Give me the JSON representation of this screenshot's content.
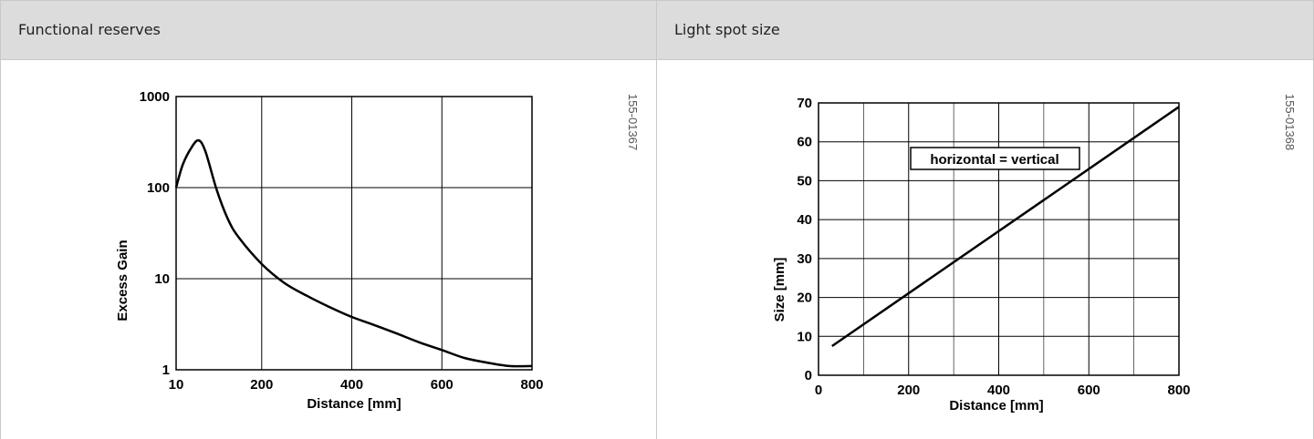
{
  "panels": [
    {
      "header": "Functional reserves",
      "figure_code": "155-01367"
    },
    {
      "header": "Light spot size",
      "figure_code": "155-01368"
    }
  ],
  "chart_data": [
    {
      "type": "line",
      "title": "",
      "xlabel": "Distance [mm]",
      "ylabel": "Excess Gain",
      "yscale": "log",
      "xlim": [
        10,
        800
      ],
      "ylim": [
        1,
        1000
      ],
      "xticks": [
        "10",
        "200",
        "400",
        "600",
        "800"
      ],
      "yticks": [
        "1",
        "10",
        "100",
        "1000"
      ],
      "grid": true,
      "x": [
        10,
        25,
        45,
        60,
        75,
        100,
        125,
        150,
        200,
        250,
        300,
        350,
        400,
        450,
        500,
        550,
        600,
        650,
        700,
        750,
        800
      ],
      "y": [
        100,
        180,
        280,
        330,
        250,
        95,
        45,
        28,
        14.5,
        9,
        6.5,
        4.9,
        3.8,
        3.1,
        2.5,
        2.0,
        1.65,
        1.35,
        1.2,
        1.1,
        1.1
      ]
    },
    {
      "type": "line",
      "title": "",
      "xlabel": "Distance [mm]",
      "ylabel": "Size [mm]",
      "xlim": [
        0,
        800
      ],
      "ylim": [
        0,
        70
      ],
      "xticks": [
        "0",
        "200",
        "400",
        "600",
        "800"
      ],
      "yticks": [
        "0",
        "10",
        "20",
        "30",
        "40",
        "50",
        "60",
        "70"
      ],
      "grid": true,
      "annotation": "horizontal = vertical",
      "x": [
        30,
        800
      ],
      "y": [
        7.5,
        69
      ]
    }
  ]
}
